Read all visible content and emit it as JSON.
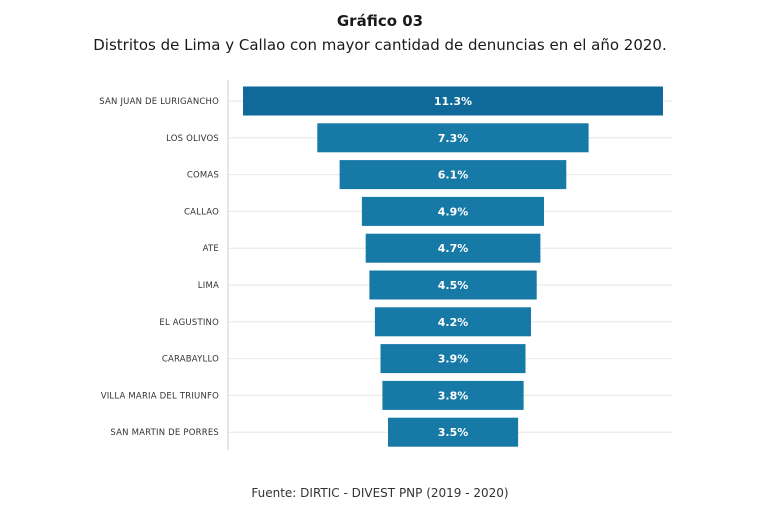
{
  "title": "Gráfico 03",
  "subtitle": "Distritos de Lima y Callao con mayor cantidad de denuncias en el año 2020.",
  "source": "Fuente: DIRTIC - DIVEST PNP (2019 - 2020)",
  "colors": {
    "bar_primary": "#0f6a9a",
    "bar": "#1779a6",
    "gridline": "#e6e6e6",
    "axis": "#cccccc"
  },
  "chart_data": {
    "type": "bar",
    "orientation": "horizontal",
    "style": "funnel-centered",
    "categories": [
      "SAN JUAN DE LURIGANCHO",
      "LOS OLIVOS",
      "COMAS",
      "CALLAO",
      "ATE",
      "LIMA",
      "EL AGUSTINO",
      "CARABAYLLO",
      "VILLA MARIA DEL TRIUNFO",
      "SAN MARTIN DE PORRES"
    ],
    "values": [
      11.3,
      7.3,
      6.1,
      4.9,
      4.7,
      4.5,
      4.2,
      3.9,
      3.8,
      3.5
    ],
    "data_labels": [
      "11.3%",
      "7.3%",
      "6.1%",
      "4.9%",
      "4.7%",
      "4.5%",
      "4.2%",
      "3.9%",
      "3.8%",
      "3.5%"
    ],
    "unit": "%",
    "xlim": [
      0,
      11.3
    ],
    "grid": true,
    "legend": "none"
  }
}
